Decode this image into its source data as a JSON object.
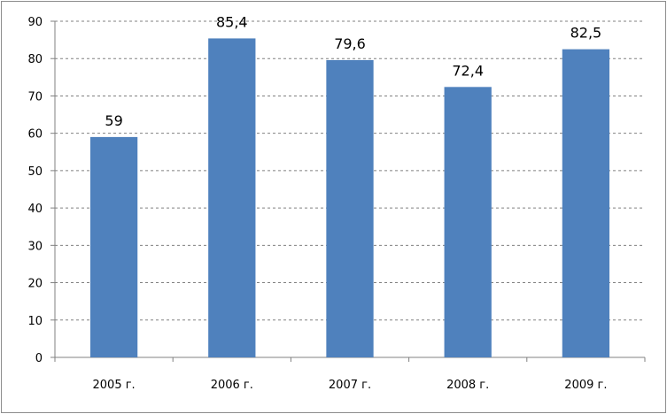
{
  "chart_data": {
    "type": "bar",
    "title": "",
    "xlabel": "",
    "ylabel": "",
    "categories": [
      "2005 г.",
      "2006 г.",
      "2007 г.",
      "2008 г.",
      "2009 г."
    ],
    "series": [
      {
        "values": [
          59,
          85.4,
          79.6,
          72.4,
          82.5
        ],
        "value_labels": [
          "59",
          "85,4",
          "79,6",
          "72,4",
          "82,5"
        ],
        "color": "#4f81bd"
      }
    ],
    "ylim": [
      0,
      90
    ],
    "y_ticks": [
      0,
      10,
      20,
      30,
      40,
      50,
      60,
      70,
      80,
      90
    ],
    "grid": true,
    "legend": "none"
  }
}
